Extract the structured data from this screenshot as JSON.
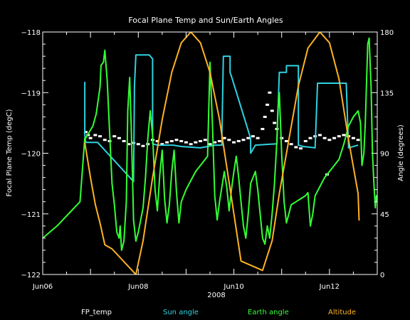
{
  "chart_data": {
    "type": "line",
    "title": "Focal Plane Temp and Sun/Earth Angles",
    "xlabel": "2008",
    "ylabel_left": "Focal Plane Temp (degC)",
    "ylabel_right": "Angle (degrees)",
    "xlim": [
      6.0,
      13.0
    ],
    "ylim_left": [
      -122,
      -118
    ],
    "ylim_right": [
      0,
      180
    ],
    "x_ticks": [
      {
        "value": 6,
        "label": "Jun06"
      },
      {
        "value": 8,
        "label": "Jun08"
      },
      {
        "value": 10,
        "label": "Jun10"
      },
      {
        "value": 12,
        "label": "Jun12"
      }
    ],
    "y_ticks_left": [
      {
        "value": -122,
        "label": "−122"
      },
      {
        "value": -121,
        "label": "−121"
      },
      {
        "value": -120,
        "label": "−120"
      },
      {
        "value": -119,
        "label": "−119"
      },
      {
        "value": -118,
        "label": "−118"
      }
    ],
    "y_ticks_right": [
      {
        "value": 0,
        "label": "0"
      },
      {
        "value": 45,
        "label": "45"
      },
      {
        "value": 90,
        "label": "90"
      },
      {
        "value": 135,
        "label": "135"
      },
      {
        "value": 180,
        "label": "180"
      }
    ],
    "grid": false,
    "legend_position": "bottom",
    "series": [
      {
        "name": "FP_temp",
        "color": "#ffffff",
        "axis": "left",
        "style": "dots",
        "points": [
          [
            6.9,
            -119.65
          ],
          [
            6.95,
            -119.7
          ],
          [
            7.0,
            -119.75
          ],
          [
            7.1,
            -119.7
          ],
          [
            7.2,
            -119.72
          ],
          [
            7.3,
            -119.78
          ],
          [
            7.4,
            -119.8
          ],
          [
            7.5,
            -119.72
          ],
          [
            7.6,
            -119.75
          ],
          [
            7.7,
            -119.8
          ],
          [
            7.8,
            -119.85
          ],
          [
            7.9,
            -119.83
          ],
          [
            8.0,
            -119.85
          ],
          [
            8.1,
            -119.88
          ],
          [
            8.2,
            -119.85
          ],
          [
            8.3,
            -119.78
          ],
          [
            8.4,
            -119.8
          ],
          [
            8.5,
            -119.85
          ],
          [
            8.6,
            -119.82
          ],
          [
            8.7,
            -119.8
          ],
          [
            8.8,
            -119.78
          ],
          [
            8.9,
            -119.8
          ],
          [
            9.0,
            -119.82
          ],
          [
            9.1,
            -119.85
          ],
          [
            9.2,
            -119.82
          ],
          [
            9.3,
            -119.8
          ],
          [
            9.4,
            -119.78
          ],
          [
            9.5,
            -119.85
          ],
          [
            9.6,
            -119.82
          ],
          [
            9.7,
            -119.8
          ],
          [
            9.8,
            -119.75
          ],
          [
            9.9,
            -119.78
          ],
          [
            10.0,
            -119.82
          ],
          [
            10.1,
            -119.8
          ],
          [
            10.2,
            -119.78
          ],
          [
            10.3,
            -119.75
          ],
          [
            10.4,
            -119.72
          ],
          [
            10.5,
            -119.75
          ],
          [
            10.6,
            -119.6
          ],
          [
            10.65,
            -119.4
          ],
          [
            10.7,
            -119.2
          ],
          [
            10.75,
            -119.0
          ],
          [
            10.8,
            -119.3
          ],
          [
            10.85,
            -119.5
          ],
          [
            10.9,
            -119.6
          ],
          [
            11.0,
            -119.75
          ],
          [
            11.1,
            -119.8
          ],
          [
            11.2,
            -119.85
          ],
          [
            11.3,
            -119.9
          ],
          [
            11.4,
            -119.92
          ],
          [
            11.5,
            -119.8
          ],
          [
            11.6,
            -119.75
          ],
          [
            11.7,
            -119.72
          ],
          [
            11.8,
            -119.7
          ],
          [
            11.9,
            -119.75
          ],
          [
            12.0,
            -119.78
          ],
          [
            12.1,
            -119.75
          ],
          [
            12.2,
            -119.72
          ],
          [
            12.3,
            -119.7
          ],
          [
            12.4,
            -119.72
          ],
          [
            12.5,
            -119.75
          ],
          [
            12.6,
            -119.78
          ],
          [
            11.95,
            -120.35
          ]
        ]
      },
      {
        "name": "Sun angle",
        "color": "#2ed3e0",
        "axis": "right",
        "points": [
          [
            6.88,
            143
          ],
          [
            6.88,
            104
          ],
          [
            6.9,
            98
          ],
          [
            7.15,
            98
          ],
          [
            7.9,
            69
          ],
          [
            7.92,
            140
          ],
          [
            7.95,
            163
          ],
          [
            8.23,
            163
          ],
          [
            8.3,
            160
          ],
          [
            8.3,
            97
          ],
          [
            8.4,
            96
          ],
          [
            8.73,
            96
          ],
          [
            8.9,
            95
          ],
          [
            9.3,
            94
          ],
          [
            9.6,
            96
          ],
          [
            9.75,
            96
          ],
          [
            9.75,
            105
          ],
          [
            9.78,
            162
          ],
          [
            9.92,
            162
          ],
          [
            9.92,
            150
          ],
          [
            9.95,
            147
          ],
          [
            10.35,
            101
          ],
          [
            10.35,
            90
          ],
          [
            10.45,
            96
          ],
          [
            10.9,
            97
          ],
          [
            10.95,
            150
          ],
          [
            11.1,
            150
          ],
          [
            11.1,
            155
          ],
          [
            11.35,
            155
          ],
          [
            11.35,
            96
          ],
          [
            11.45,
            95
          ],
          [
            11.7,
            94
          ],
          [
            11.75,
            142
          ],
          [
            12.35,
            142
          ],
          [
            12.4,
            94
          ],
          [
            12.6,
            96
          ]
        ]
      },
      {
        "name": "Earth angle",
        "color": "#33ff33",
        "axis": "left",
        "points": [
          [
            6.0,
            -121.4
          ],
          [
            6.3,
            -121.2
          ],
          [
            6.6,
            -120.95
          ],
          [
            6.78,
            -120.8
          ],
          [
            6.8,
            -120.6
          ],
          [
            6.88,
            -119.75
          ],
          [
            6.9,
            -119.75
          ],
          [
            7.05,
            -119.55
          ],
          [
            7.12,
            -119.35
          ],
          [
            7.2,
            -118.9
          ],
          [
            7.22,
            -118.55
          ],
          [
            7.27,
            -118.5
          ],
          [
            7.3,
            -118.3
          ],
          [
            7.35,
            -118.8
          ],
          [
            7.4,
            -119.65
          ],
          [
            7.45,
            -120.5
          ],
          [
            7.5,
            -120.85
          ],
          [
            7.55,
            -121.3
          ],
          [
            7.6,
            -121.4
          ],
          [
            7.62,
            -121.2
          ],
          [
            7.65,
            -121.6
          ],
          [
            7.7,
            -121.45
          ],
          [
            7.75,
            -120.8
          ],
          [
            7.78,
            -119.3
          ],
          [
            7.82,
            -118.75
          ],
          [
            7.85,
            -119.5
          ],
          [
            7.88,
            -120.4
          ],
          [
            7.9,
            -121.1
          ],
          [
            7.95,
            -121.45
          ],
          [
            8.0,
            -121.3
          ],
          [
            8.1,
            -120.9
          ],
          [
            8.15,
            -120.4
          ],
          [
            8.2,
            -119.75
          ],
          [
            8.25,
            -119.3
          ],
          [
            8.3,
            -119.7
          ],
          [
            8.35,
            -120.6
          ],
          [
            8.4,
            -120.95
          ],
          [
            8.45,
            -120.35
          ],
          [
            8.5,
            -119.95
          ],
          [
            8.55,
            -120.75
          ],
          [
            8.6,
            -121.15
          ],
          [
            8.65,
            -120.85
          ],
          [
            8.7,
            -120.3
          ],
          [
            8.75,
            -119.95
          ],
          [
            8.8,
            -120.65
          ],
          [
            8.85,
            -121.15
          ],
          [
            8.9,
            -120.8
          ],
          [
            9.0,
            -120.6
          ],
          [
            9.1,
            -120.45
          ],
          [
            9.2,
            -120.3
          ],
          [
            9.3,
            -120.2
          ],
          [
            9.45,
            -120.05
          ],
          [
            9.5,
            -118.5
          ],
          [
            9.55,
            -119.5
          ],
          [
            9.6,
            -120.7
          ],
          [
            9.65,
            -121.1
          ],
          [
            9.7,
            -120.8
          ],
          [
            9.75,
            -120.55
          ],
          [
            9.8,
            -120.3
          ],
          [
            9.85,
            -120.55
          ],
          [
            9.9,
            -120.95
          ],
          [
            9.95,
            -120.6
          ],
          [
            10.0,
            -120.3
          ],
          [
            10.05,
            -120.05
          ],
          [
            10.1,
            -120.4
          ],
          [
            10.15,
            -120.8
          ],
          [
            10.2,
            -121.2
          ],
          [
            10.25,
            -121.4
          ],
          [
            10.3,
            -121.0
          ],
          [
            10.35,
            -120.5
          ],
          [
            10.45,
            -120.3
          ],
          [
            10.5,
            -120.6
          ],
          [
            10.55,
            -121.0
          ],
          [
            10.6,
            -121.4
          ],
          [
            10.65,
            -121.5
          ],
          [
            10.7,
            -121.2
          ],
          [
            10.75,
            -121.4
          ],
          [
            10.8,
            -121.0
          ],
          [
            10.85,
            -120.5
          ],
          [
            10.9,
            -119.8
          ],
          [
            10.92,
            -119.3
          ],
          [
            10.95,
            -119.0
          ],
          [
            11.0,
            -120.0
          ],
          [
            11.05,
            -120.8
          ],
          [
            11.1,
            -121.15
          ],
          [
            11.15,
            -121.0
          ],
          [
            11.2,
            -120.85
          ],
          [
            11.3,
            -120.8
          ],
          [
            11.4,
            -120.75
          ],
          [
            11.5,
            -120.7
          ],
          [
            11.55,
            -120.65
          ],
          [
            11.6,
            -121.2
          ],
          [
            11.65,
            -121.0
          ],
          [
            11.7,
            -120.7
          ],
          [
            11.8,
            -120.55
          ],
          [
            11.9,
            -120.4
          ],
          [
            12.0,
            -120.3
          ],
          [
            12.1,
            -120.2
          ],
          [
            12.2,
            -120.1
          ],
          [
            12.3,
            -119.85
          ],
          [
            12.35,
            -119.7
          ],
          [
            12.4,
            -119.55
          ],
          [
            12.5,
            -119.4
          ],
          [
            12.55,
            -119.35
          ],
          [
            12.6,
            -119.3
          ],
          [
            12.65,
            -119.5
          ],
          [
            12.68,
            -120.2
          ],
          [
            12.72,
            -120.0
          ],
          [
            12.75,
            -119.5
          ],
          [
            12.8,
            -118.2
          ],
          [
            12.83,
            -118.1
          ],
          [
            12.87,
            -118.9
          ],
          [
            12.9,
            -120.0
          ],
          [
            12.93,
            -120.5
          ],
          [
            12.96,
            -120.9
          ],
          [
            12.98,
            -120.7
          ],
          [
            13.0,
            -120.8
          ]
        ]
      },
      {
        "name": "Altitude",
        "color": "#ffb224",
        "axis": "right",
        "points": [
          [
            6.88,
            98
          ],
          [
            7.0,
            72
          ],
          [
            7.1,
            52
          ],
          [
            7.2,
            38
          ],
          [
            7.3,
            22
          ],
          [
            7.45,
            19
          ],
          [
            7.95,
            0
          ],
          [
            8.1,
            25
          ],
          [
            8.3,
            72
          ],
          [
            8.5,
            115
          ],
          [
            8.7,
            150
          ],
          [
            8.9,
            172
          ],
          [
            9.1,
            180
          ],
          [
            9.3,
            172
          ],
          [
            9.5,
            150
          ],
          [
            9.7,
            115
          ],
          [
            9.85,
            80
          ],
          [
            10.0,
            45
          ],
          [
            10.15,
            10
          ],
          [
            10.6,
            3
          ],
          [
            10.8,
            25
          ],
          [
            10.95,
            60
          ],
          [
            11.15,
            100
          ],
          [
            11.35,
            140
          ],
          [
            11.55,
            168
          ],
          [
            11.8,
            180
          ],
          [
            12.0,
            172
          ],
          [
            12.2,
            145
          ],
          [
            12.4,
            100
          ],
          [
            12.6,
            60
          ],
          [
            12.62,
            40
          ]
        ]
      }
    ]
  }
}
